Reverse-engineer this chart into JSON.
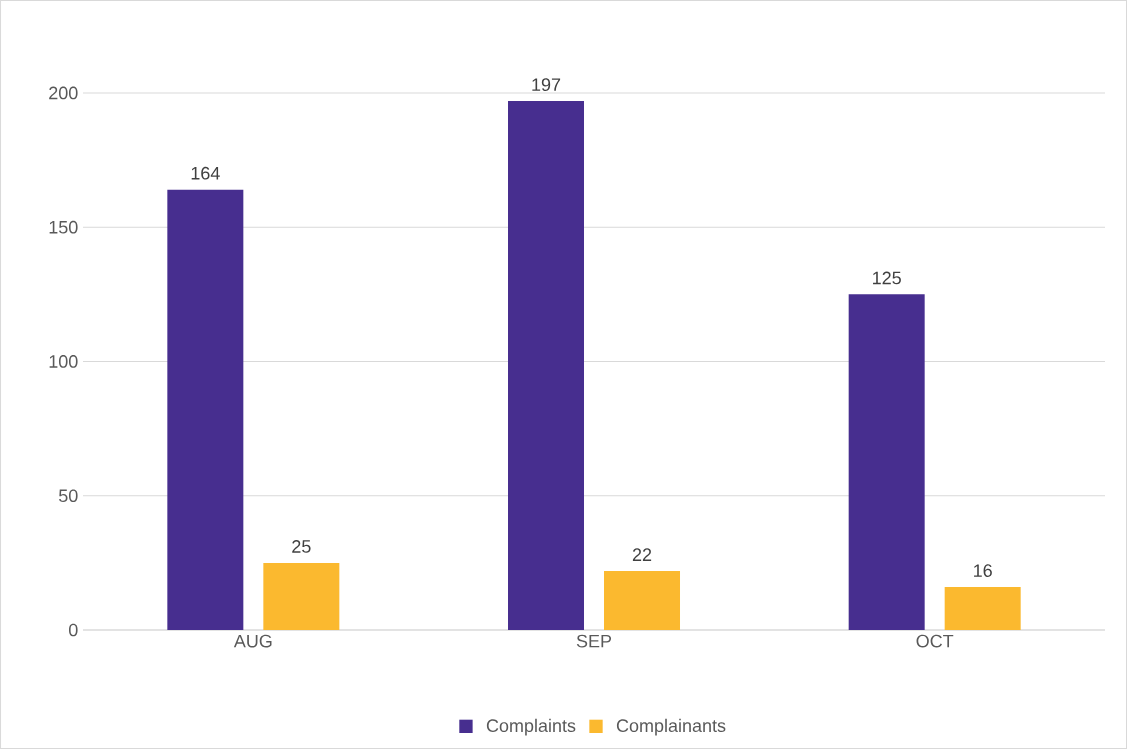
{
  "chart_data": {
    "type": "bar",
    "categories": [
      "AUG",
      "SEP",
      "OCT"
    ],
    "series": [
      {
        "name": "Complaints",
        "color": "#472e8f",
        "values": [
          164,
          197,
          125
        ]
      },
      {
        "name": "Complainants",
        "color": "#fbb92f",
        "values": [
          25,
          22,
          16
        ]
      }
    ],
    "ylim": [
      0,
      200
    ],
    "yticks": [
      0,
      50,
      100,
      150,
      200
    ],
    "grid": "y",
    "legend": "bottom",
    "data_labels": true
  }
}
